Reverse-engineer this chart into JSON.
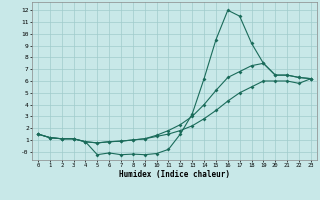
{
  "xlabel": "Humidex (Indice chaleur)",
  "bg_color": "#c8e8e8",
  "grid_color": "#a0cccc",
  "line_color": "#1a6b5a",
  "x_hours": [
    0,
    1,
    2,
    3,
    4,
    5,
    6,
    7,
    8,
    9,
    10,
    11,
    12,
    13,
    14,
    15,
    16,
    17,
    18,
    19,
    20,
    21,
    22,
    23
  ],
  "line1": [
    1.5,
    1.2,
    1.1,
    1.1,
    0.85,
    -0.25,
    -0.1,
    -0.25,
    -0.2,
    -0.25,
    -0.15,
    0.2,
    1.5,
    3.2,
    6.2,
    9.5,
    12.0,
    11.5,
    9.2,
    7.5,
    6.5,
    6.5,
    6.3,
    6.2
  ],
  "line2": [
    1.5,
    1.2,
    1.1,
    1.1,
    0.85,
    0.75,
    0.85,
    0.9,
    1.0,
    1.1,
    1.4,
    1.8,
    2.3,
    3.0,
    4.0,
    5.2,
    6.3,
    6.8,
    7.3,
    7.5,
    6.5,
    6.5,
    6.3,
    6.2
  ],
  "line3": [
    1.5,
    1.2,
    1.1,
    1.1,
    0.85,
    0.75,
    0.85,
    0.9,
    1.0,
    1.1,
    1.3,
    1.5,
    1.8,
    2.2,
    2.8,
    3.5,
    4.3,
    5.0,
    5.5,
    6.0,
    6.0,
    6.0,
    5.8,
    6.2
  ],
  "xlim": [
    -0.5,
    23.5
  ],
  "ylim": [
    -0.7,
    12.7
  ],
  "yticks": [
    0,
    1,
    2,
    3,
    4,
    5,
    6,
    7,
    8,
    9,
    10,
    11,
    12
  ],
  "ytick_labels": [
    "-0",
    "1",
    "2",
    "3",
    "4",
    "5",
    "6",
    "7",
    "8",
    "9",
    "10",
    "11",
    "12"
  ],
  "xticks": [
    0,
    1,
    2,
    3,
    4,
    5,
    6,
    7,
    8,
    9,
    10,
    11,
    12,
    13,
    14,
    15,
    16,
    17,
    18,
    19,
    20,
    21,
    22,
    23
  ],
  "figwidth": 3.2,
  "figheight": 2.0,
  "dpi": 100
}
